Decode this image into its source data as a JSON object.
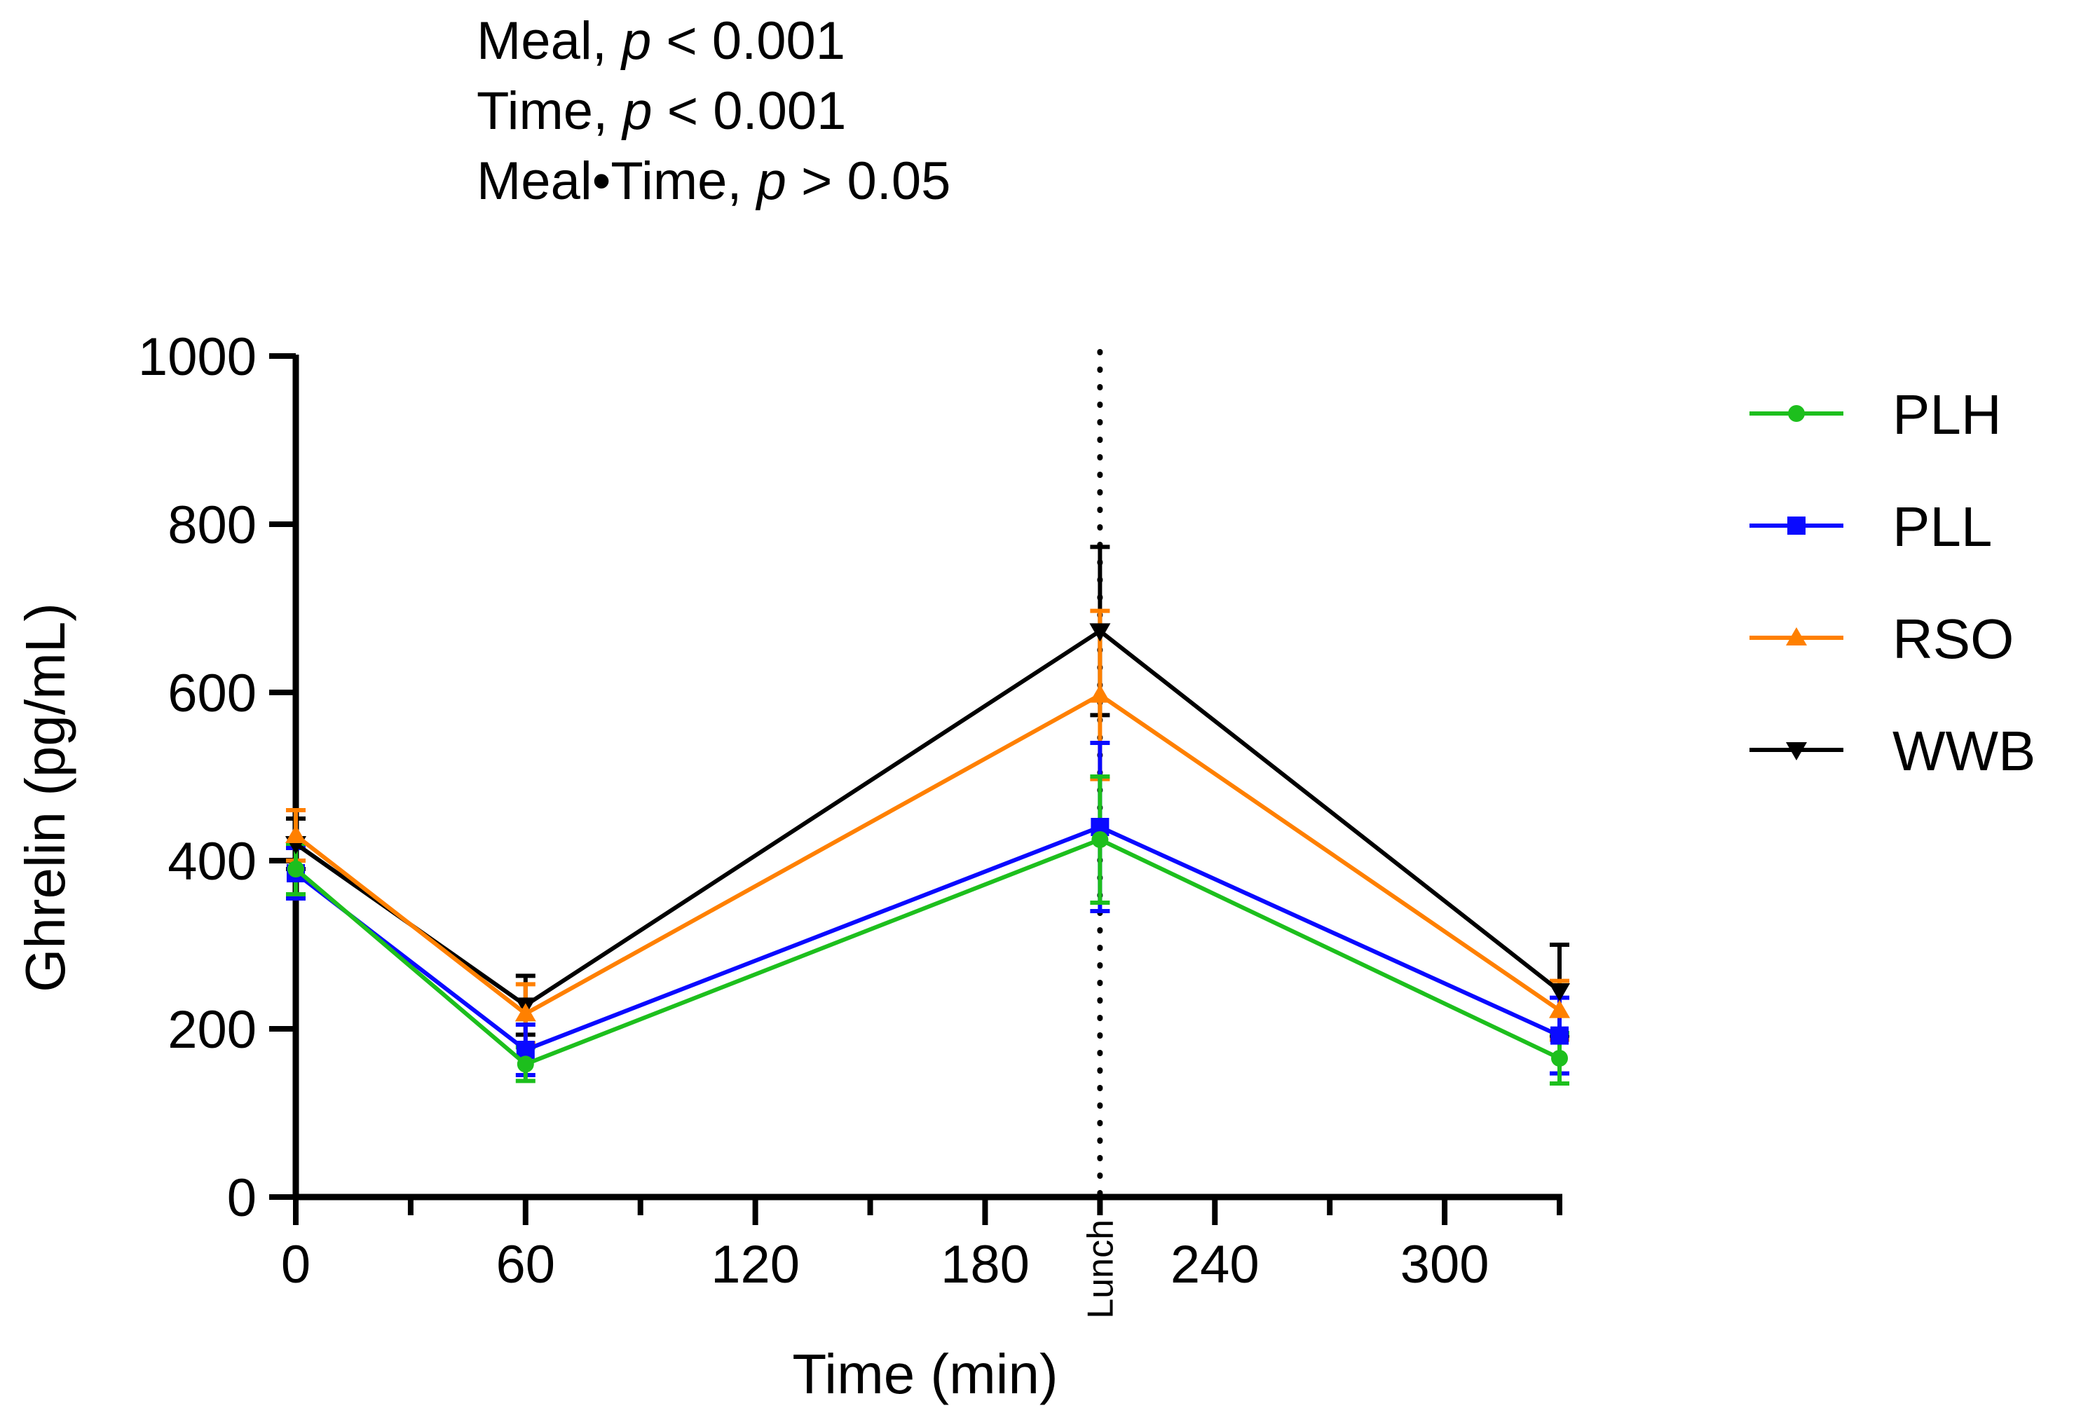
{
  "stats": {
    "meal_prefix": "Meal, ",
    "meal_p": "p",
    "meal_suffix": " < 0.001",
    "time_prefix": "Time, ",
    "time_p": "p",
    "time_suffix": " < 0.001",
    "inter_prefix": "Meal•Time, ",
    "inter_p": "p",
    "inter_suffix": " > 0.05"
  },
  "chart_data": {
    "type": "line",
    "title": "",
    "xlabel": "Time (min)",
    "ylabel": "Ghrelin (pg/mL)",
    "xlim": [
      0,
      330
    ],
    "ylim": [
      0,
      1000
    ],
    "x_ticks": [
      0,
      60,
      120,
      180,
      240,
      300
    ],
    "x_tick_labels": [
      "0",
      "60",
      "120",
      "180",
      "240",
      "300"
    ],
    "y_ticks": [
      0,
      200,
      400,
      600,
      800,
      1000
    ],
    "y_tick_labels": [
      "0",
      "200",
      "400",
      "600",
      "800",
      "1000"
    ],
    "x": [
      0,
      60,
      210,
      330
    ],
    "annotation": {
      "x": 210,
      "label": "Lunch",
      "style": "dotted vertical line"
    },
    "legend_position": "right",
    "series": [
      {
        "name": "PLH",
        "color": "#1dbf1d",
        "marker": "circle",
        "values": [
          390,
          158,
          425,
          165
        ],
        "errors": [
          30,
          20,
          75,
          30
        ]
      },
      {
        "name": "PLL",
        "color": "#0a0aff",
        "marker": "square",
        "values": [
          385,
          175,
          440,
          192
        ],
        "errors": [
          30,
          30,
          100,
          45
        ]
      },
      {
        "name": "RSO",
        "color": "#ff8000",
        "marker": "triangle-up",
        "values": [
          430,
          218,
          597,
          222
        ],
        "errors": [
          30,
          35,
          100,
          35
        ]
      },
      {
        "name": "WWB",
        "color": "#000000",
        "marker": "triangle-down",
        "values": [
          420,
          228,
          673,
          245
        ],
        "errors": [
          30,
          35,
          100,
          55
        ]
      }
    ]
  }
}
